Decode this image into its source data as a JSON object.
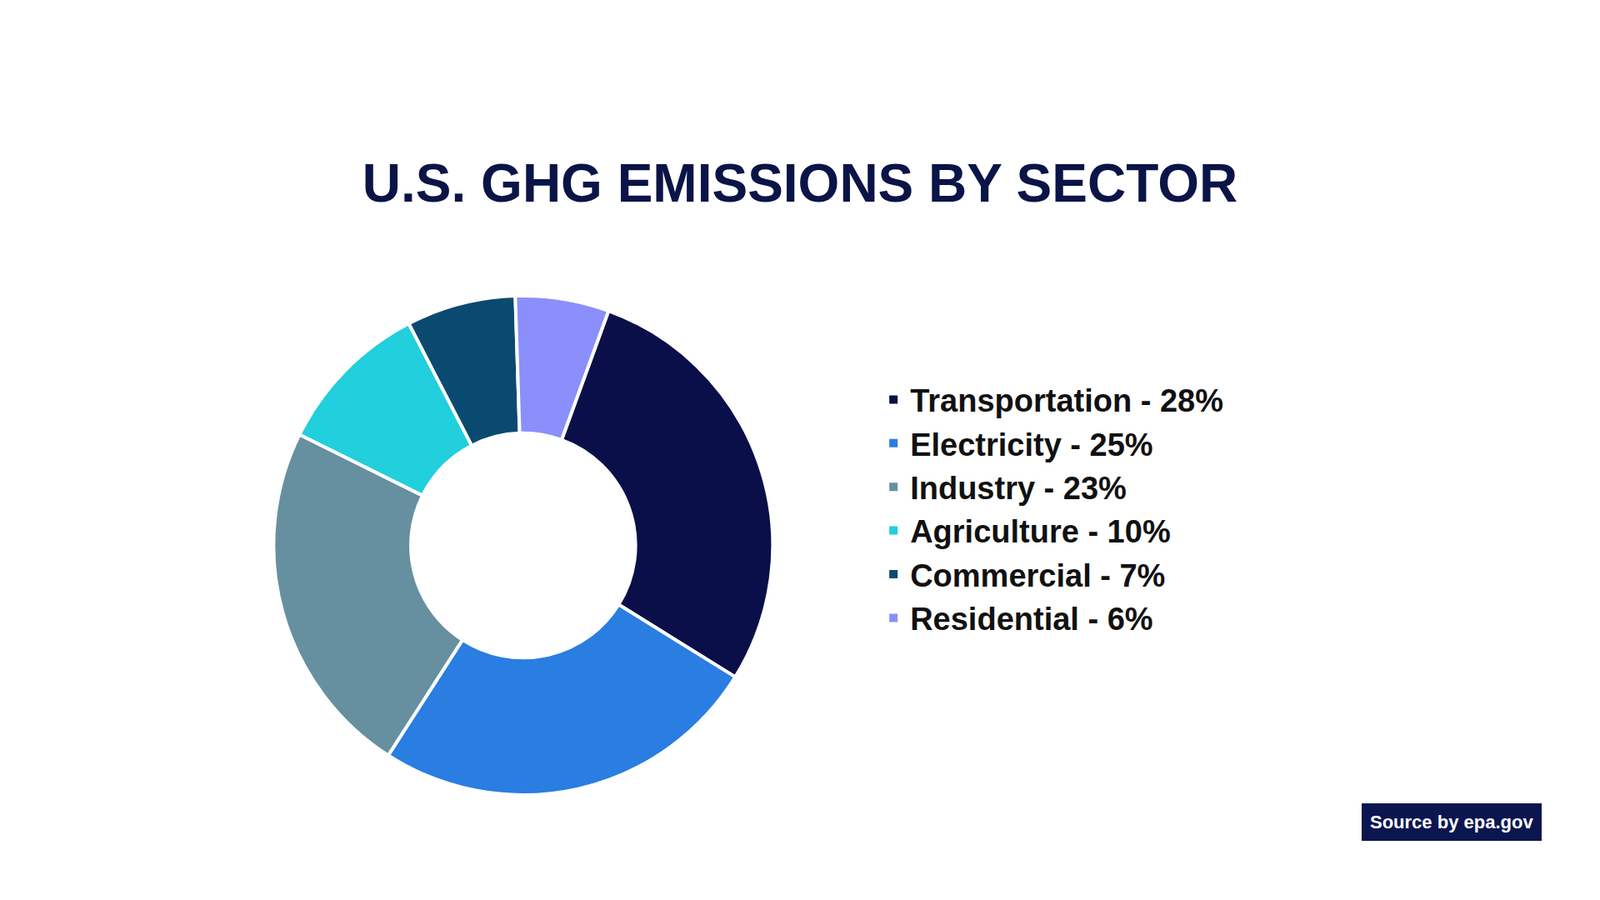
{
  "chart_data": {
    "type": "pie",
    "title": "U.S. GHG EMISSIONS BY SECTOR",
    "categories": [
      "Transportation - 28%",
      "Electricity - 25%",
      "Industry - 23%",
      "Agriculture - 10%",
      "Commercial - 7%",
      "Residential - 6%"
    ],
    "values": [
      28,
      25,
      23,
      10,
      7,
      6
    ],
    "colors": [
      "#0a0f4a",
      "#2a7de1",
      "#6690a0",
      "#22cfdc",
      "#0b4a70",
      "#8a8ffc"
    ],
    "legend": "right",
    "data_labels": false,
    "annotation": "Source by epa.gov"
  }
}
